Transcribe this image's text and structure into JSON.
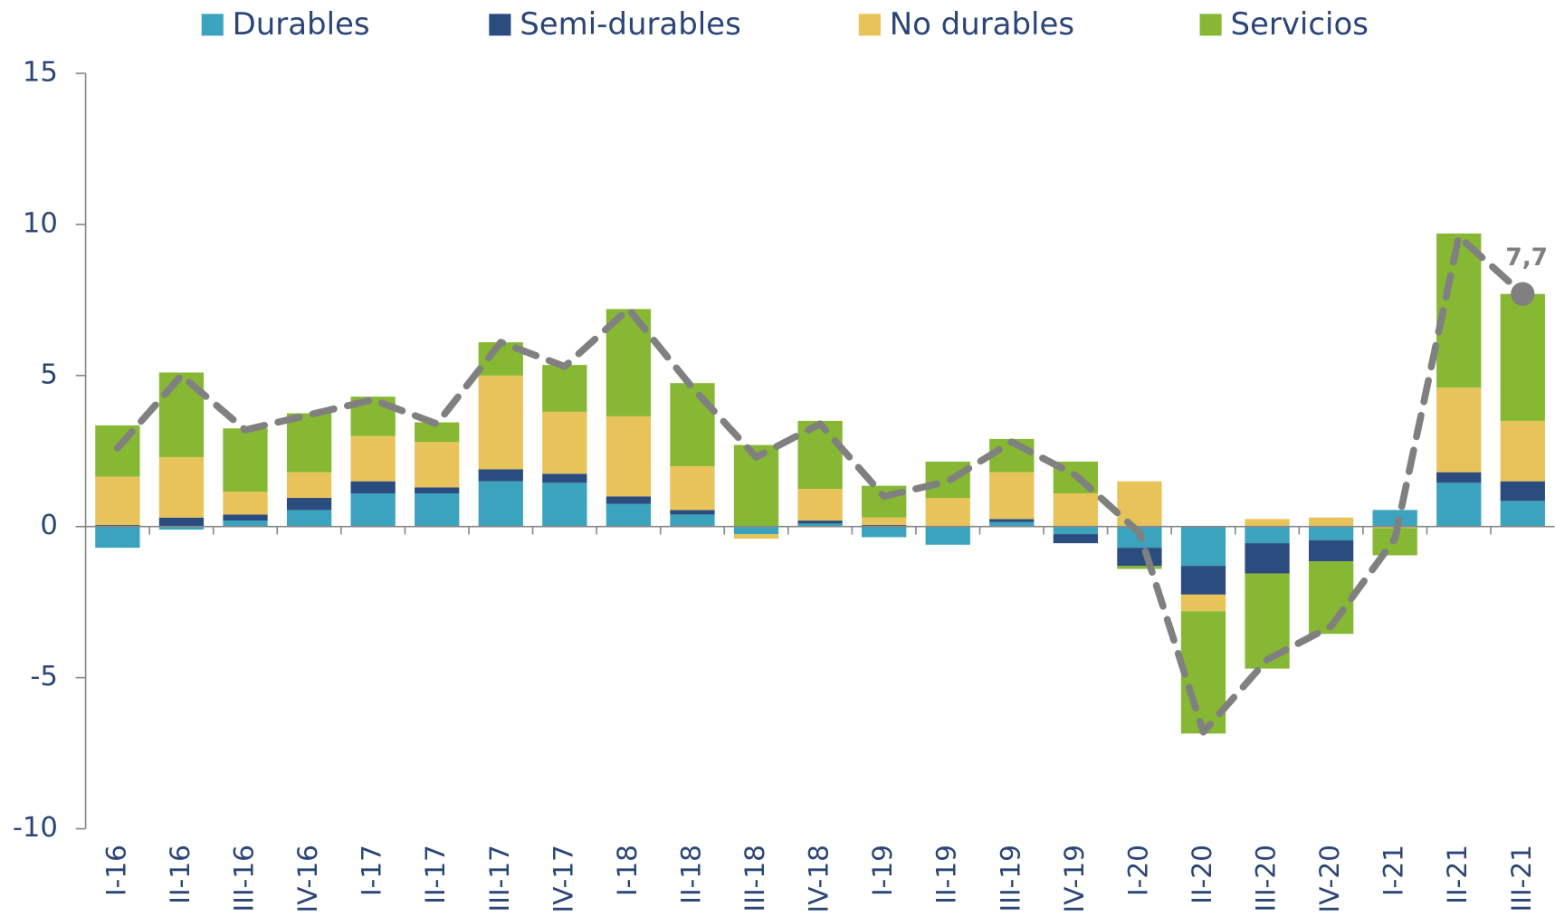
{
  "chart_data": {
    "type": "bar",
    "stacked": true,
    "categories": [
      "I-16",
      "II-16",
      "III-16",
      "IV-16",
      "I-17",
      "II-17",
      "III-17",
      "IV-17",
      "I-18",
      "II-18",
      "III-18",
      "IV-18",
      "I-19",
      "II-19",
      "III-19",
      "IV-19",
      "I-20",
      "II-20",
      "III-20",
      "IV-20",
      "I-21",
      "II-21",
      "III-21"
    ],
    "series": [
      {
        "name": "Durables",
        "color": "#3ba3bd",
        "values": [
          -0.7,
          -0.1,
          0.2,
          0.55,
          1.1,
          1.1,
          1.5,
          1.45,
          0.75,
          0.4,
          -0.25,
          0.1,
          -0.35,
          -0.6,
          0.15,
          -0.25,
          -0.7,
          -1.3,
          -0.55,
          -0.45,
          0.55,
          1.45,
          0.85
        ]
      },
      {
        "name": "Semi-durables",
        "color": "#2b4c7e",
        "values": [
          0.05,
          0.3,
          0.2,
          0.4,
          0.4,
          0.2,
          0.4,
          0.3,
          0.25,
          0.15,
          0,
          0.1,
          0.05,
          0,
          0.1,
          -0.3,
          -0.6,
          -0.95,
          -1.0,
          -0.7,
          0,
          0.35,
          0.65
        ]
      },
      {
        "name": "No durables",
        "color": "#e8c35a",
        "values": [
          1.6,
          2.0,
          0.75,
          0.85,
          1.5,
          1.5,
          3.1,
          2.05,
          2.65,
          1.45,
          -0.15,
          1.05,
          0.25,
          0.95,
          1.55,
          1.1,
          1.5,
          -0.55,
          0.25,
          0.3,
          -0.05,
          2.8,
          2.0
        ]
      },
      {
        "name": "Servicios",
        "color": "#86b833",
        "values": [
          1.7,
          2.8,
          2.1,
          1.95,
          1.3,
          0.65,
          1.1,
          1.55,
          3.55,
          2.75,
          2.7,
          2.25,
          1.05,
          1.2,
          1.1,
          1.05,
          -0.1,
          -4.05,
          -3.15,
          -2.4,
          -0.9,
          5.1,
          4.2
        ]
      }
    ],
    "total": {
      "color": "#808080",
      "values": [
        2.6,
        5.0,
        3.2,
        3.7,
        4.2,
        3.4,
        6.1,
        5.3,
        7.2,
        4.6,
        2.3,
        3.4,
        1.0,
        1.5,
        2.8,
        1.7,
        -0.2,
        -6.8,
        -4.4,
        -3.3,
        -0.4,
        9.6,
        7.7
      ],
      "value_labels": [
        null,
        null,
        null,
        null,
        null,
        null,
        null,
        null,
        null,
        null,
        null,
        null,
        null,
        null,
        null,
        null,
        null,
        null,
        null,
        null,
        null,
        null,
        "7,7"
      ]
    },
    "ylim": [
      -10,
      15
    ],
    "yticks": [
      -10,
      -5,
      0,
      5,
      10,
      15
    ],
    "legend": "top"
  }
}
